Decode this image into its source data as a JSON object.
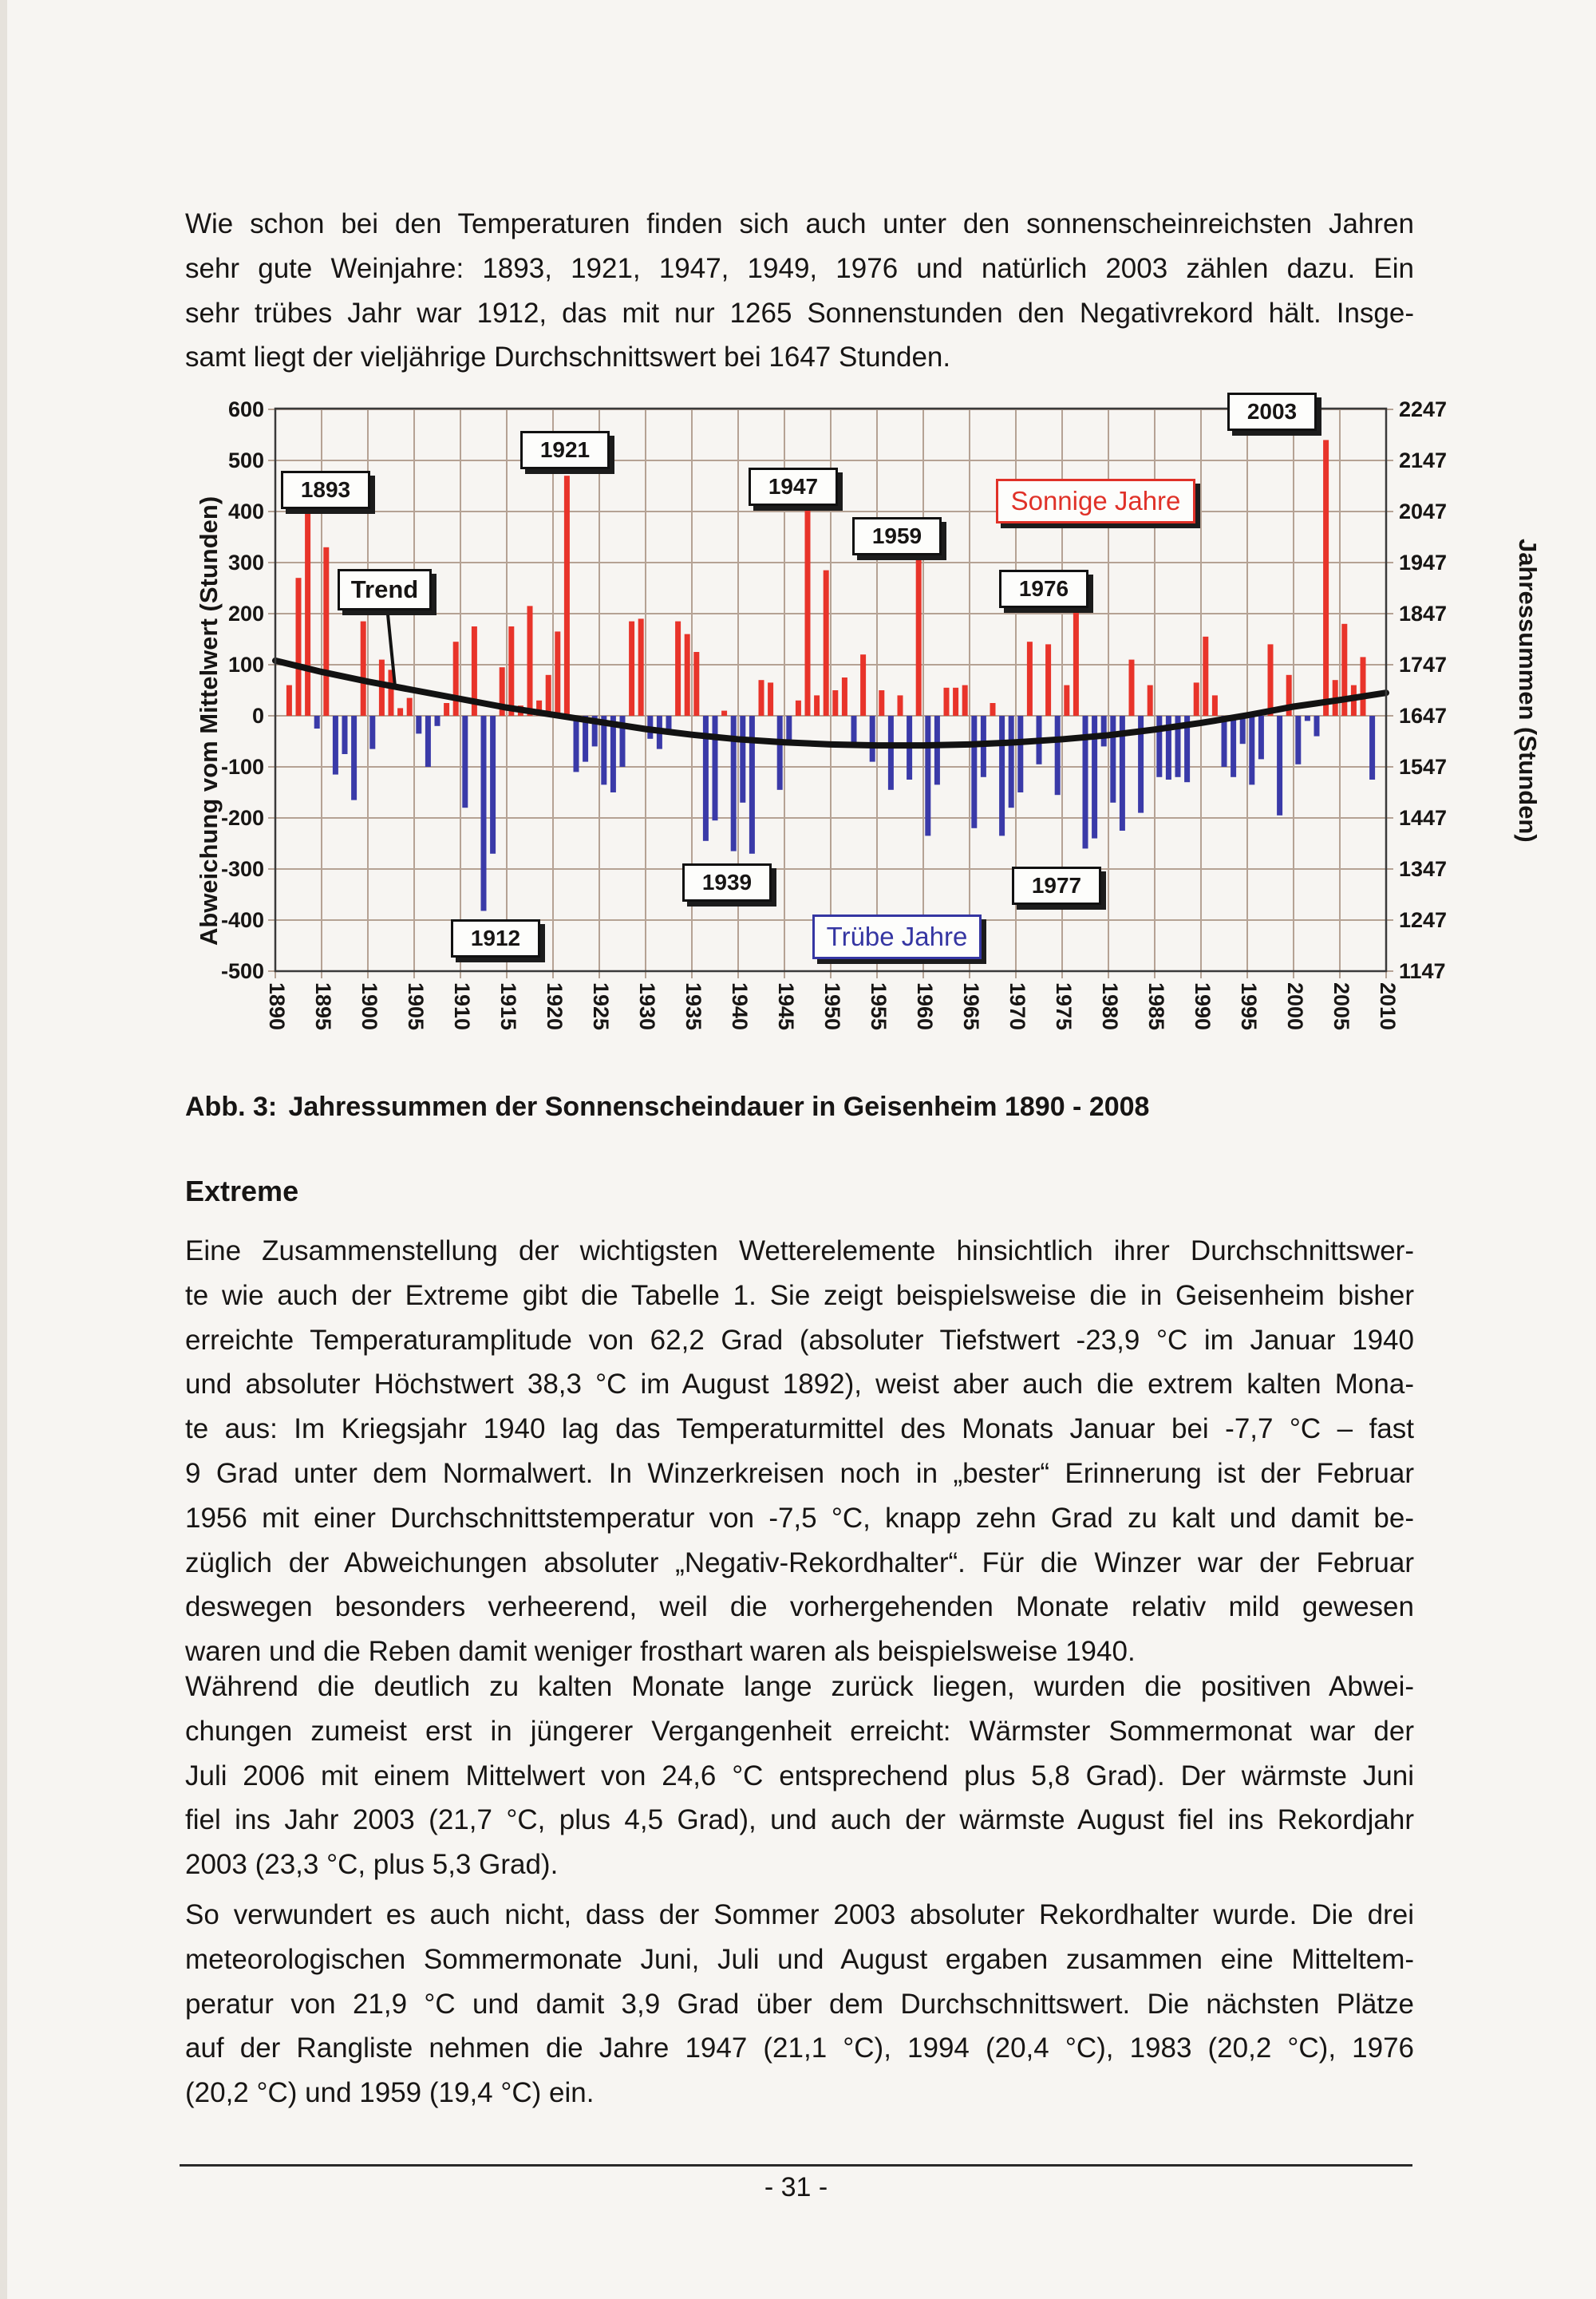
{
  "page": {
    "paragraph1": {
      "lines": [
        "Wie schon bei den Temperaturen finden sich auch unter den sonnenscheinreichsten Jahren",
        "sehr gute Weinjahre: 1893, 1921, 1947, 1949, 1976 und natürlich 2003 zählen dazu. Ein",
        "sehr trübes Jahr war 1912, das mit nur 1265 Sonnenstunden den Negativrekord hält. Insge-",
        "samt liegt der vieljährige Durchschnittswert bei 1647 Stunden."
      ]
    },
    "caption": {
      "prefix": "Abb. 3:",
      "text": "Jahressummen der Sonnenscheindauer in Geisenheim 1890 - 2008"
    },
    "section_heading": "Extreme",
    "paragraph2": {
      "lines": [
        "Eine Zusammenstellung der wichtigsten Wetterelemente hinsichtlich ihrer Durchschnittswer-",
        "te wie auch der Extreme gibt die Tabelle 1. Sie zeigt beispielsweise die in Geisenheim bisher",
        "erreichte Temperaturamplitude von 62,2 Grad (absoluter Tiefstwert -23,9 °C im Januar 1940",
        "und absoluter Höchstwert 38,3 °C im August 1892), weist aber auch die extrem kalten Mona-",
        "te aus: Im Kriegsjahr 1940 lag das Temperaturmittel des Monats Januar bei -7,7 °C – fast",
        "9 Grad unter dem Normalwert. In Winzerkreisen noch in „bester“ Erinnerung ist der Februar",
        "1956 mit einer Durchschnittstemperatur von -7,5 °C, knapp zehn Grad zu kalt und damit be-",
        "züglich der Abweichungen absoluter „Negativ-Rekordhalter“. Für die Winzer war der Februar",
        "deswegen besonders verheerend, weil die vorhergehenden Monate relativ mild gewesen",
        "waren und die Reben damit weniger frosthart waren als beispielsweise 1940."
      ]
    },
    "paragraph3": {
      "lines": [
        "Während die deutlich zu kalten Monate lange zurück liegen, wurden die positiven Abwei-",
        "chungen zumeist erst in jüngerer Vergangenheit erreicht: Wärmster Sommermonat war der",
        "Juli 2006 mit einem Mittelwert von 24,6 °C entsprechend plus 5,8 Grad). Der wärmste Juni",
        "fiel ins Jahr 2003 (21,7 °C, plus 4,5 Grad), und auch der wärmste August fiel ins Rekordjahr",
        "2003 (23,3 °C, plus 5,3 Grad)."
      ]
    },
    "paragraph4": {
      "lines": [
        "So verwundert es auch nicht, dass der Sommer 2003 absoluter Rekordhalter wurde. Die drei",
        "meteorologischen Sommermonate Juni, Juli und August ergaben zusammen eine Mitteltem-",
        "peratur von 21,9 °C und damit 3,9 Grad über dem Durchschnittswert. Die nächsten Plätze",
        "auf der Rangliste nehmen die Jahre 1947 (21,1 °C), 1994 (20,4 °C), 1983 (20,2 °C), 1976",
        "(20,2 °C) und 1959 (19,4 °C) ein."
      ]
    },
    "page_number": "- 31 -"
  },
  "chart_data": {
    "type": "bar",
    "title": "Jahressummen der Sonnenscheindauer in Geisenheim 1890 - 2008",
    "ylabel_left": "Abweichung vom Mittelwert (Stunden)",
    "ylabel_right": "Jahressummen (Stunden)",
    "ylim_left": [
      -500,
      600
    ],
    "ylim_right": [
      1147,
      2247
    ],
    "xlim": [
      1890,
      2010
    ],
    "x_tick_step": 5,
    "y_tick_step": 100,
    "mean_hours": 1647,
    "grid": true,
    "positive_color": "#e8342a",
    "negative_color": "#3a3aa8",
    "grid_color": "#b5a294",
    "years": [
      1890,
      1891,
      1892,
      1893,
      1894,
      1895,
      1896,
      1897,
      1898,
      1899,
      1900,
      1901,
      1902,
      1903,
      1904,
      1905,
      1906,
      1907,
      1908,
      1909,
      1910,
      1911,
      1912,
      1913,
      1914,
      1915,
      1916,
      1917,
      1918,
      1919,
      1920,
      1921,
      1922,
      1923,
      1924,
      1925,
      1926,
      1927,
      1928,
      1929,
      1930,
      1931,
      1932,
      1933,
      1934,
      1935,
      1936,
      1937,
      1938,
      1939,
      1940,
      1941,
      1942,
      1943,
      1944,
      1945,
      1946,
      1947,
      1948,
      1949,
      1950,
      1951,
      1952,
      1953,
      1954,
      1955,
      1956,
      1957,
      1958,
      1959,
      1960,
      1961,
      1962,
      1963,
      1964,
      1965,
      1966,
      1967,
      1968,
      1969,
      1970,
      1971,
      1972,
      1973,
      1974,
      1975,
      1976,
      1977,
      1978,
      1979,
      1980,
      1981,
      1982,
      1983,
      1984,
      1985,
      1986,
      1987,
      1988,
      1989,
      1990,
      1991,
      1992,
      1993,
      1994,
      1995,
      1996,
      1997,
      1998,
      1999,
      2000,
      2001,
      2002,
      2003,
      2004,
      2005,
      2006,
      2007,
      2008
    ],
    "values": [
      0,
      60,
      270,
      400,
      -25,
      330,
      -115,
      -75,
      -165,
      185,
      -65,
      110,
      90,
      15,
      35,
      -35,
      -100,
      -20,
      25,
      145,
      -180,
      175,
      -382,
      -270,
      95,
      175,
      20,
      215,
      30,
      80,
      165,
      470,
      -110,
      -90,
      -60,
      -135,
      -150,
      -100,
      185,
      190,
      -45,
      -65,
      -30,
      185,
      160,
      125,
      -245,
      -205,
      10,
      -265,
      -170,
      -270,
      70,
      65,
      -145,
      -50,
      30,
      405,
      40,
      285,
      50,
      75,
      -60,
      120,
      -90,
      50,
      -145,
      40,
      -125,
      315,
      -235,
      -135,
      55,
      55,
      60,
      -220,
      -120,
      25,
      -235,
      -180,
      -150,
      145,
      -95,
      140,
      -155,
      60,
      205,
      -260,
      -240,
      -60,
      -170,
      -225,
      110,
      -190,
      60,
      -120,
      -125,
      -120,
      -130,
      65,
      155,
      40,
      -100,
      -120,
      -55,
      -135,
      -85,
      140,
      -195,
      80,
      -95,
      -10,
      -40,
      540,
      70,
      180,
      60,
      115,
      -125
    ],
    "trend": [
      [
        1890,
        108
      ],
      [
        1895,
        86
      ],
      [
        1900,
        67
      ],
      [
        1905,
        50
      ],
      [
        1910,
        33
      ],
      [
        1915,
        16
      ],
      [
        1920,
        2
      ],
      [
        1925,
        -12
      ],
      [
        1930,
        -26
      ],
      [
        1935,
        -37
      ],
      [
        1940,
        -46
      ],
      [
        1945,
        -52
      ],
      [
        1950,
        -56
      ],
      [
        1955,
        -58
      ],
      [
        1960,
        -58
      ],
      [
        1965,
        -56
      ],
      [
        1970,
        -52
      ],
      [
        1975,
        -46
      ],
      [
        1980,
        -38
      ],
      [
        1985,
        -27
      ],
      [
        1990,
        -14
      ],
      [
        1995,
        1
      ],
      [
        2000,
        18
      ],
      [
        2005,
        31
      ],
      [
        2010,
        45
      ]
    ],
    "x_ticks": [
      "1890",
      "1895",
      "1900",
      "1905",
      "1910",
      "1915",
      "1920",
      "1925",
      "1930",
      "1935",
      "1940",
      "1945",
      "1950",
      "1955",
      "1960",
      "1965",
      "1970",
      "1975",
      "1980",
      "1985",
      "1990",
      "1995",
      "2000",
      "2005",
      "2010"
    ],
    "y_ticks_left": [
      "600",
      "500",
      "400",
      "300",
      "200",
      "100",
      "0",
      "-100",
      "-200",
      "-300",
      "-400",
      "-500"
    ],
    "y_ticks_right": [
      "2247",
      "2147",
      "2047",
      "1947",
      "1847",
      "1747",
      "1647",
      "1547",
      "1447",
      "1347",
      "1247",
      "1147"
    ],
    "annotations": {
      "trend_label": "Trend",
      "legend_sunny": "Sonnige Jahre",
      "legend_cloudy": "Trübe Jahre",
      "sunny_years": [
        "1893",
        "1921",
        "1947",
        "1959",
        "1976",
        "2003"
      ],
      "cloudy_years": [
        "1912",
        "1939",
        "1977"
      ]
    }
  }
}
